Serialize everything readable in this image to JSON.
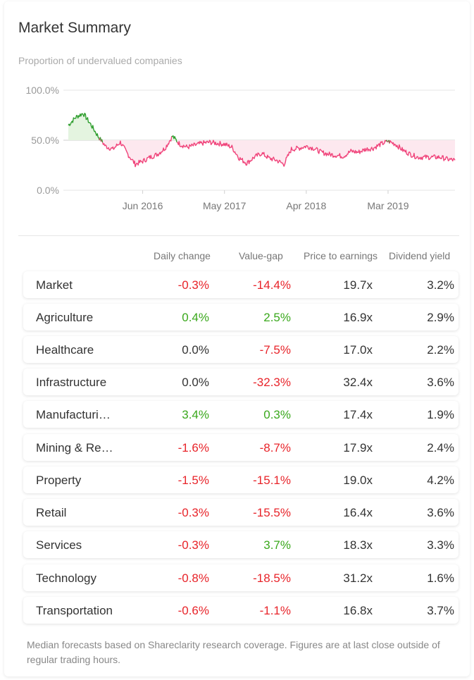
{
  "header": {
    "title": "Market Summary",
    "subtitle": "Proportion of undervalued companies"
  },
  "chart_data": {
    "type": "line",
    "y_ticks": [
      "100.0%",
      "50.0%",
      "0.0%"
    ],
    "x_ticks": [
      "Jun 2016",
      "May 2017",
      "Apr 2018",
      "Mar 2019"
    ],
    "ylim": [
      0,
      100
    ],
    "reference_line": 50,
    "colors": {
      "above": "#2e9e2e",
      "below": "#f0437a",
      "fill_above": "#e4f4e0",
      "fill_below": "#fde8ef"
    },
    "x": [
      "2015-08",
      "2015-09",
      "2015-10",
      "2015-11",
      "2015-12",
      "2016-01",
      "2016-02",
      "2016-03",
      "2016-04",
      "2016-05",
      "2016-06",
      "2016-07",
      "2016-08",
      "2016-09",
      "2016-10",
      "2016-11",
      "2016-12",
      "2017-01",
      "2017-02",
      "2017-03",
      "2017-04",
      "2017-05",
      "2017-06",
      "2017-07",
      "2017-08",
      "2017-09",
      "2017-10",
      "2017-11",
      "2017-12",
      "2018-01",
      "2018-02",
      "2018-03",
      "2018-04",
      "2018-05",
      "2018-06",
      "2018-07",
      "2018-08",
      "2018-09",
      "2018-10",
      "2018-11",
      "2018-12",
      "2019-01",
      "2019-02",
      "2019-03",
      "2019-04",
      "2019-05",
      "2019-06",
      "2019-07",
      "2019-08",
      "2019-09",
      "2019-10",
      "2019-11",
      "2019-12"
    ],
    "y": [
      65,
      73,
      77,
      66,
      54,
      44,
      41,
      48,
      36,
      26,
      29,
      33,
      36,
      42,
      54,
      46,
      43,
      45,
      47,
      48,
      47,
      46,
      43,
      32,
      27,
      33,
      37,
      32,
      30,
      26,
      41,
      42,
      44,
      42,
      38,
      36,
      35,
      34,
      39,
      38,
      41,
      42,
      46,
      49,
      46,
      40,
      36,
      33,
      33,
      33,
      33,
      31,
      30
    ]
  },
  "table": {
    "headers": [
      "Daily change",
      "Value-gap",
      "Price to earnings",
      "Dividend yield"
    ],
    "rows": [
      {
        "name": "Market",
        "daily_change": "-0.3%",
        "value_gap": "-14.4%",
        "pe": "19.7x",
        "dividend": "3.2%"
      },
      {
        "name": "Agriculture",
        "daily_change": "0.4%",
        "value_gap": "2.5%",
        "pe": "16.9x",
        "dividend": "2.9%"
      },
      {
        "name": "Healthcare",
        "daily_change": "0.0%",
        "value_gap": "-7.5%",
        "pe": "17.0x",
        "dividend": "2.2%"
      },
      {
        "name": "Infrastructure",
        "daily_change": "0.0%",
        "value_gap": "-32.3%",
        "pe": "32.4x",
        "dividend": "3.6%"
      },
      {
        "name": "Manufacturi…",
        "daily_change": "3.4%",
        "value_gap": "0.3%",
        "pe": "17.4x",
        "dividend": "1.9%"
      },
      {
        "name": "Mining & Re…",
        "daily_change": "-1.6%",
        "value_gap": "-8.7%",
        "pe": "17.9x",
        "dividend": "2.4%"
      },
      {
        "name": "Property",
        "daily_change": "-1.5%",
        "value_gap": "-15.1%",
        "pe": "19.0x",
        "dividend": "4.2%"
      },
      {
        "name": "Retail",
        "daily_change": "-0.3%",
        "value_gap": "-15.5%",
        "pe": "16.4x",
        "dividend": "3.6%"
      },
      {
        "name": "Services",
        "daily_change": "-0.3%",
        "value_gap": "3.7%",
        "pe": "18.3x",
        "dividend": "3.3%"
      },
      {
        "name": "Technology",
        "daily_change": "-0.8%",
        "value_gap": "-18.5%",
        "pe": "31.2x",
        "dividend": "1.6%"
      },
      {
        "name": "Transportation",
        "daily_change": "-0.6%",
        "value_gap": "-1.1%",
        "pe": "16.8x",
        "dividend": "3.7%"
      }
    ]
  },
  "footnote": "Median forecasts based on Shareclarity research coverage. Figures are at last close outside of regular trading hours."
}
